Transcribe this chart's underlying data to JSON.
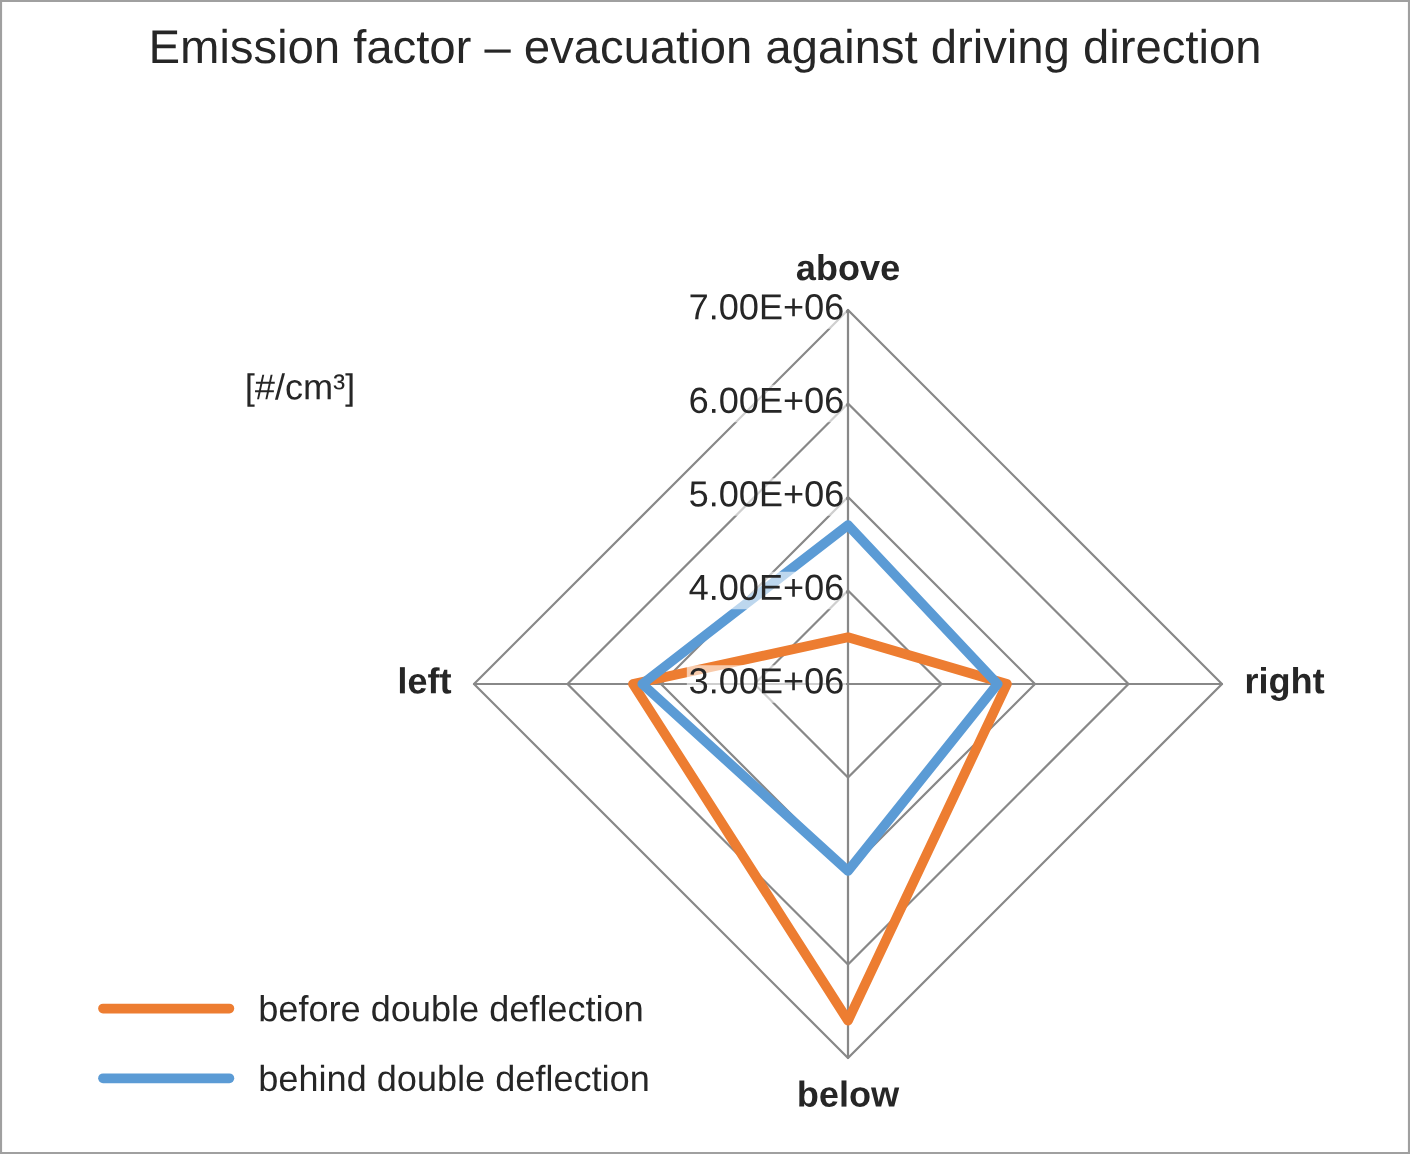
{
  "chart_data": {
    "type": "radar",
    "title": "Emission factor – evacuation against driving direction",
    "annotations": [
      "[#/cm³]"
    ],
    "categories": [
      "above",
      "right",
      "below",
      "left"
    ],
    "ylim": [
      3000000,
      7000000
    ],
    "yticks": [
      {
        "value": 3000000,
        "label": "3.00E+06"
      },
      {
        "value": 4000000,
        "label": "4.00E+06"
      },
      {
        "value": 5000000,
        "label": "5.00E+06"
      },
      {
        "value": 6000000,
        "label": "6.00E+06"
      },
      {
        "value": 7000000,
        "label": "7.00E+06"
      }
    ],
    "grid": true,
    "legend": "bottom left",
    "marker": "none",
    "series": [
      {
        "name": "before double deflection",
        "color": "#ed7d31",
        "values": [
          3500000,
          4700000,
          6600000,
          5300000
        ]
      },
      {
        "name": "behind double deflection",
        "color": "#5b9bd5",
        "values": [
          4700000,
          4600000,
          5000000,
          5200000
        ]
      }
    ]
  }
}
